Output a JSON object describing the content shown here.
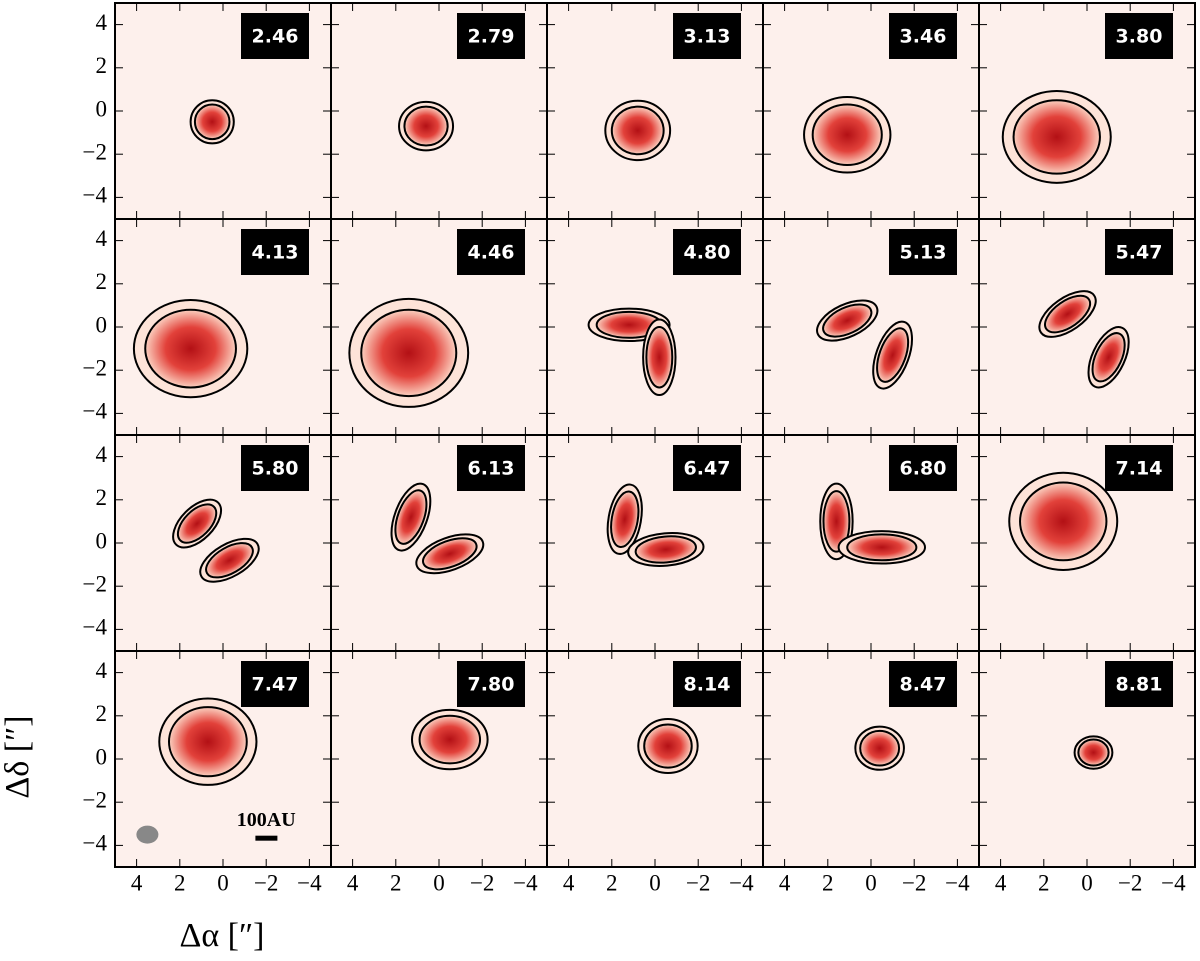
{
  "chart_data": {
    "type": "channel-map",
    "xlabel": "Δα [″]",
    "ylabel": "Δδ [″]",
    "xlim": [
      5,
      -5
    ],
    "ylim": [
      -5,
      5
    ],
    "xticks": [
      4,
      2,
      0,
      {
        "value": -2,
        "label": "−2"
      },
      {
        "value": -4,
        "label": "−4"
      }
    ],
    "yticks": [
      4,
      2,
      0,
      {
        "value": -2,
        "label": "−2"
      },
      {
        "value": -4,
        "label": "−4"
      }
    ],
    "panels": [
      {
        "label": "2.46"
      },
      {
        "label": "2.79"
      },
      {
        "label": "3.13"
      },
      {
        "label": "3.46"
      },
      {
        "label": "3.80"
      },
      {
        "label": "4.13"
      },
      {
        "label": "4.46"
      },
      {
        "label": "4.80"
      },
      {
        "label": "5.13"
      },
      {
        "label": "5.47"
      },
      {
        "label": "5.80"
      },
      {
        "label": "6.13"
      },
      {
        "label": "6.47"
      },
      {
        "label": "6.80"
      },
      {
        "label": "7.14"
      },
      {
        "label": "7.47"
      },
      {
        "label": "7.80"
      },
      {
        "label": "8.14"
      },
      {
        "label": "8.47"
      },
      {
        "label": "8.81"
      }
    ],
    "scale_bar": "100AU"
  }
}
